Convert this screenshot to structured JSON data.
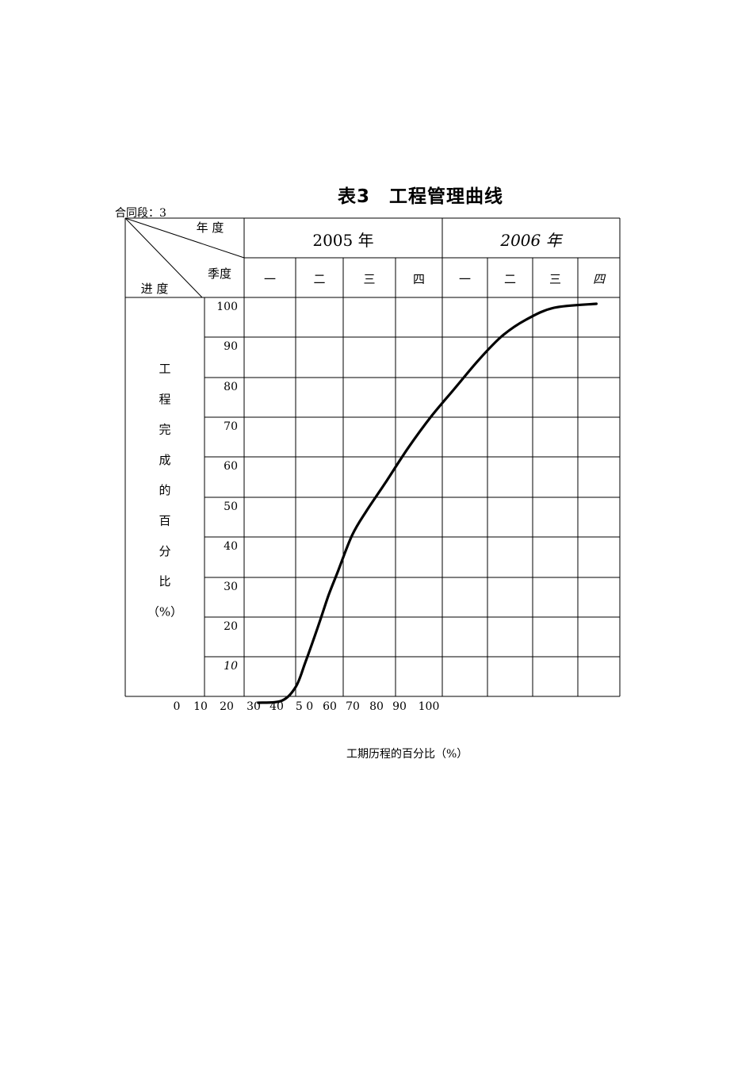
{
  "title": "表3　工程管理曲线",
  "contract_label": "合同段：3",
  "corner": {
    "year_label": "年 度",
    "quarter_label": "季度",
    "progress_label": "进 度"
  },
  "years": [
    "2005 年",
    "2006 年"
  ],
  "quarters": [
    "一",
    "二",
    "三",
    "四",
    "一",
    "二",
    "三",
    "四"
  ],
  "left_axis_title": [
    "工",
    "程",
    "完",
    "成",
    "的",
    "百",
    "分",
    "比",
    "（%）"
  ],
  "y_ticks": [
    "100",
    "90",
    "80",
    "70",
    "60",
    "50",
    "40",
    "30",
    "20",
    "10"
  ],
  "x_ticks": [
    "0",
    "10",
    "20",
    "30",
    "40",
    "5 0",
    "60",
    "70",
    "80",
    "90",
    "100"
  ],
  "x_axis_label": "工期历程的百分比（%）",
  "chart_data": {
    "type": "line",
    "xlabel": "工期历程的百分比（%）",
    "ylabel": "工程完成的百分比（%）",
    "x_unit": "quarter (2005 Q1 start = 0, 2006 Q4 end = 8)",
    "ylim": [
      0,
      100
    ],
    "grid": true,
    "series": [
      {
        "points": [
          [
            0.3,
            0
          ],
          [
            0.8,
            0.5
          ],
          [
            1.1,
            4
          ],
          [
            1.3,
            10
          ],
          [
            1.6,
            20
          ],
          [
            1.8,
            27
          ],
          [
            2.0,
            33
          ],
          [
            2.3,
            42
          ],
          [
            2.6,
            48
          ],
          [
            3.0,
            55
          ],
          [
            3.5,
            64
          ],
          [
            4.0,
            72
          ],
          [
            4.5,
            79
          ],
          [
            5.0,
            86
          ],
          [
            5.5,
            92
          ],
          [
            6.0,
            96
          ],
          [
            6.6,
            99
          ],
          [
            7.5,
            100
          ]
        ]
      }
    ]
  }
}
